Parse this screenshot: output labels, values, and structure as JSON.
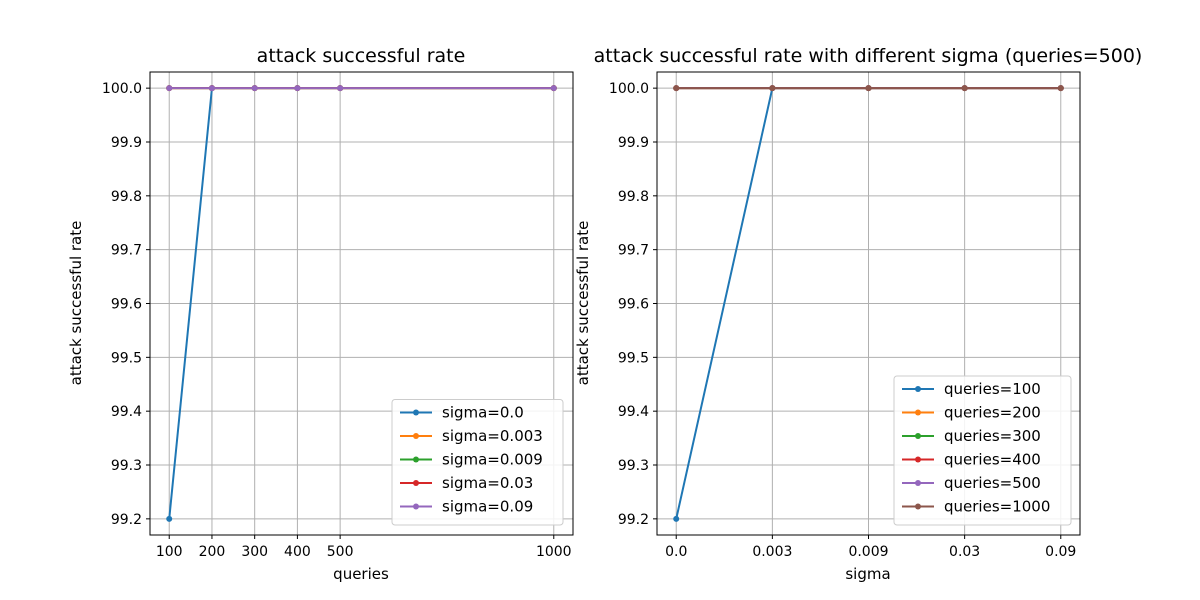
{
  "chart_data": [
    {
      "type": "line",
      "title": "attack successful rate",
      "xlabel": "queries",
      "ylabel": "attack successful rate",
      "x": [
        100,
        200,
        300,
        400,
        500,
        1000
      ],
      "xticks": [
        "100",
        "200",
        "300",
        "400",
        "500",
        "1000"
      ],
      "xlim": [
        55,
        1045
      ],
      "ylim": [
        99.17,
        100.03
      ],
      "yticks": [
        "99.2",
        "99.3",
        "99.4",
        "99.5",
        "99.6",
        "99.7",
        "99.8",
        "99.9",
        "100.0"
      ],
      "grid": true,
      "legend_position": "lower right",
      "series": [
        {
          "name": "sigma=0.0",
          "values": [
            99.2,
            100.0,
            100.0,
            100.0,
            100.0,
            100.0
          ],
          "color": "#1f77b4"
        },
        {
          "name": "sigma=0.003",
          "values": [
            100.0,
            100.0,
            100.0,
            100.0,
            100.0,
            100.0
          ],
          "color": "#ff7f0e"
        },
        {
          "name": "sigma=0.009",
          "values": [
            100.0,
            100.0,
            100.0,
            100.0,
            100.0,
            100.0
          ],
          "color": "#2ca02c"
        },
        {
          "name": "sigma=0.03",
          "values": [
            100.0,
            100.0,
            100.0,
            100.0,
            100.0,
            100.0
          ],
          "color": "#d62728"
        },
        {
          "name": "sigma=0.09",
          "values": [
            100.0,
            100.0,
            100.0,
            100.0,
            100.0,
            100.0
          ],
          "color": "#9467bd"
        }
      ]
    },
    {
      "type": "line",
      "title": "attack successful rate with different sigma (queries=500)",
      "xlabel": "sigma",
      "ylabel": "attack successful rate",
      "x": [
        "0.0",
        "0.003",
        "0.009",
        "0.03",
        "0.09"
      ],
      "xticks": [
        "0.0",
        "0.003",
        "0.009",
        "0.03",
        "0.09"
      ],
      "xlim": [
        -0.2,
        4.2
      ],
      "ylim": [
        99.17,
        100.03
      ],
      "yticks": [
        "99.2",
        "99.3",
        "99.4",
        "99.5",
        "99.6",
        "99.7",
        "99.8",
        "99.9",
        "100.0"
      ],
      "grid": true,
      "legend_position": "lower right",
      "series": [
        {
          "name": "queries=100",
          "values": [
            99.2,
            100.0,
            100.0,
            100.0,
            100.0
          ],
          "color": "#1f77b4"
        },
        {
          "name": "queries=200",
          "values": [
            100.0,
            100.0,
            100.0,
            100.0,
            100.0
          ],
          "color": "#ff7f0e"
        },
        {
          "name": "queries=300",
          "values": [
            100.0,
            100.0,
            100.0,
            100.0,
            100.0
          ],
          "color": "#2ca02c"
        },
        {
          "name": "queries=400",
          "values": [
            100.0,
            100.0,
            100.0,
            100.0,
            100.0
          ],
          "color": "#d62728"
        },
        {
          "name": "queries=500",
          "values": [
            100.0,
            100.0,
            100.0,
            100.0,
            100.0
          ],
          "color": "#9467bd"
        },
        {
          "name": "queries=1000",
          "values": [
            100.0,
            100.0,
            100.0,
            100.0,
            100.0
          ],
          "color": "#8c564b"
        }
      ]
    }
  ]
}
